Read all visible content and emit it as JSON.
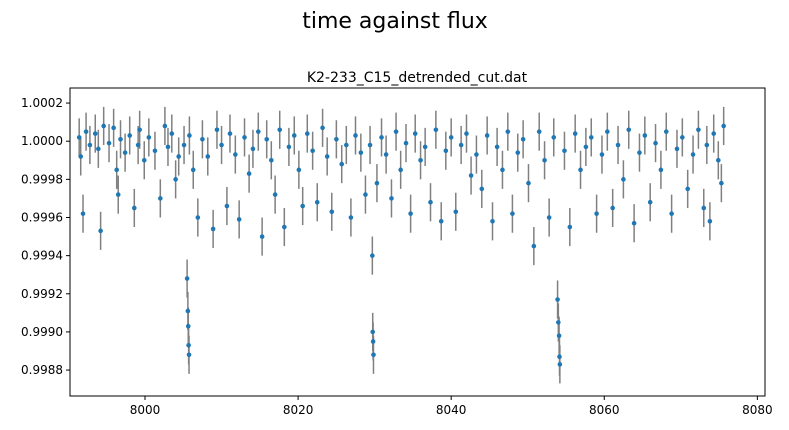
{
  "chart_data": {
    "type": "errorbar",
    "suptitle": "time against flux",
    "title": "K2-233_C15_detrended_cut.dat",
    "x": [
      7991.4,
      7991.6,
      7991.9,
      7992.3,
      7992.8,
      7993.5,
      7993.9,
      7994.2,
      7994.6,
      7995.3,
      7995.9,
      7996.3,
      7996.5,
      7996.8,
      7997.4,
      7998.0,
      7998.6,
      7999.1,
      7999.3,
      7999.9,
      8000.5,
      8001.3,
      8002.0,
      8002.6,
      8003.0,
      8003.5,
      8004.0,
      8004.4,
      8005.1,
      8005.5,
      8005.6,
      8005.65,
      8005.7,
      8005.75,
      8005.8,
      8006.3,
      8006.9,
      8007.5,
      8008.2,
      8008.9,
      8009.4,
      8010.0,
      8010.7,
      8011.1,
      8011.8,
      8012.3,
      8013.0,
      8013.6,
      8014.1,
      8014.8,
      8015.3,
      8015.9,
      8016.5,
      8017.0,
      8017.6,
      8018.2,
      8018.8,
      8019.5,
      8020.1,
      8020.6,
      8021.2,
      8021.9,
      8022.5,
      8023.2,
      8023.8,
      8024.4,
      8025.0,
      8025.7,
      8026.3,
      8026.9,
      8027.5,
      8028.2,
      8028.8,
      8029.4,
      8029.7,
      8029.75,
      8029.8,
      8029.85,
      8030.3,
      8030.9,
      8031.5,
      8032.2,
      8032.8,
      8033.4,
      8034.1,
      8034.7,
      8035.3,
      8036.0,
      8036.6,
      8037.3,
      8038.0,
      8038.7,
      8039.3,
      8040.0,
      8040.6,
      8041.3,
      8042.0,
      8042.6,
      8043.3,
      8044.0,
      8044.7,
      8045.4,
      8046.0,
      8046.7,
      8047.4,
      8048.0,
      8048.7,
      8049.4,
      8050.1,
      8050.8,
      8051.5,
      8052.2,
      8052.8,
      8053.4,
      8053.9,
      8054.0,
      8054.1,
      8054.15,
      8054.2,
      8054.8,
      8055.5,
      8056.2,
      8056.9,
      8057.6,
      8058.3,
      8059.0,
      8059.7,
      8060.4,
      8061.1,
      8061.8,
      8062.5,
      8063.2,
      8063.9,
      8064.6,
      8065.3,
      8066.0,
      8066.7,
      8067.4,
      8068.1,
      8068.8,
      8069.5,
      8070.2,
      8070.9,
      8071.6,
      8072.3,
      8073.0,
      8073.4,
      8073.8,
      8074.3,
      8074.9,
      8075.3,
      8075.6
    ],
    "y": [
      1.00002,
      0.99992,
      0.99962,
      1.00005,
      0.99998,
      1.00004,
      0.99996,
      0.99953,
      1.00008,
      0.99999,
      1.00007,
      0.99985,
      0.99972,
      1.00001,
      0.99994,
      1.00003,
      0.99965,
      0.99998,
      1.00006,
      0.9999,
      1.00002,
      0.99995,
      0.9997,
      1.00008,
      0.99997,
      1.00004,
      0.9998,
      0.99992,
      0.99998,
      0.99928,
      0.99911,
      0.99903,
      0.99893,
      0.99888,
      1.00003,
      0.99985,
      0.9996,
      1.00001,
      0.99992,
      0.99954,
      1.00006,
      0.99998,
      0.99966,
      1.00004,
      0.99993,
      0.99959,
      1.00002,
      0.99983,
      0.99996,
      1.00005,
      0.9995,
      1.00001,
      0.9999,
      0.99972,
      1.00006,
      0.99955,
      0.99997,
      1.00003,
      0.99985,
      0.99966,
      1.00004,
      0.99995,
      0.99968,
      1.00007,
      0.99992,
      0.99963,
      1.00001,
      0.99988,
      0.99998,
      0.9996,
      1.00003,
      0.99994,
      0.99972,
      0.99998,
      0.9994,
      0.999,
      0.99895,
      0.99888,
      0.99978,
      1.00002,
      0.99993,
      0.9997,
      1.00005,
      0.99985,
      0.99999,
      0.99962,
      1.00004,
      0.9999,
      0.99997,
      0.99968,
      1.00006,
      0.99958,
      0.99995,
      1.00002,
      0.99963,
      0.99998,
      1.00004,
      0.99982,
      0.99993,
      0.99975,
      1.00003,
      0.99958,
      0.99997,
      0.99985,
      1.00005,
      0.99962,
      0.99994,
      1.00001,
      0.99978,
      0.99945,
      1.00005,
      0.9999,
      0.9996,
      1.00002,
      0.99917,
      0.99905,
      0.99898,
      0.99887,
      0.99883,
      0.99995,
      0.99955,
      1.00004,
      0.99985,
      0.99997,
      1.00002,
      0.99962,
      0.99993,
      1.00005,
      0.99965,
      0.99998,
      0.9998,
      1.00006,
      0.99957,
      0.99994,
      1.00003,
      0.99968,
      0.99999,
      0.99985,
      1.00005,
      0.99962,
      0.99996,
      1.00002,
      0.99975,
      0.99993,
      1.00006,
      0.99965,
      0.99998,
      0.99958,
      1.00004,
      0.9999,
      0.99978,
      1.00008
    ],
    "yerr": 0.0001,
    "color": "#1f77b4",
    "ecolor": "#808080",
    "xlim": [
      7990.2,
      8081.0
    ],
    "ylim": [
      0.998664,
      1.000279
    ],
    "xticks": [
      8000,
      8020,
      8040,
      8060,
      8080
    ],
    "yticks": [
      {
        "value": 0.9988,
        "label": "0.9988"
      },
      {
        "value": 0.999,
        "label": "0.9990"
      },
      {
        "value": 0.9992,
        "label": "0.9992"
      },
      {
        "value": 0.9994,
        "label": "0.9994"
      },
      {
        "value": 0.9996,
        "label": "0.9996"
      },
      {
        "value": 0.9998,
        "label": "0.9998"
      },
      {
        "value": 1.0,
        "label": "1.0000"
      },
      {
        "value": 1.0002,
        "label": "1.0002"
      }
    ]
  }
}
